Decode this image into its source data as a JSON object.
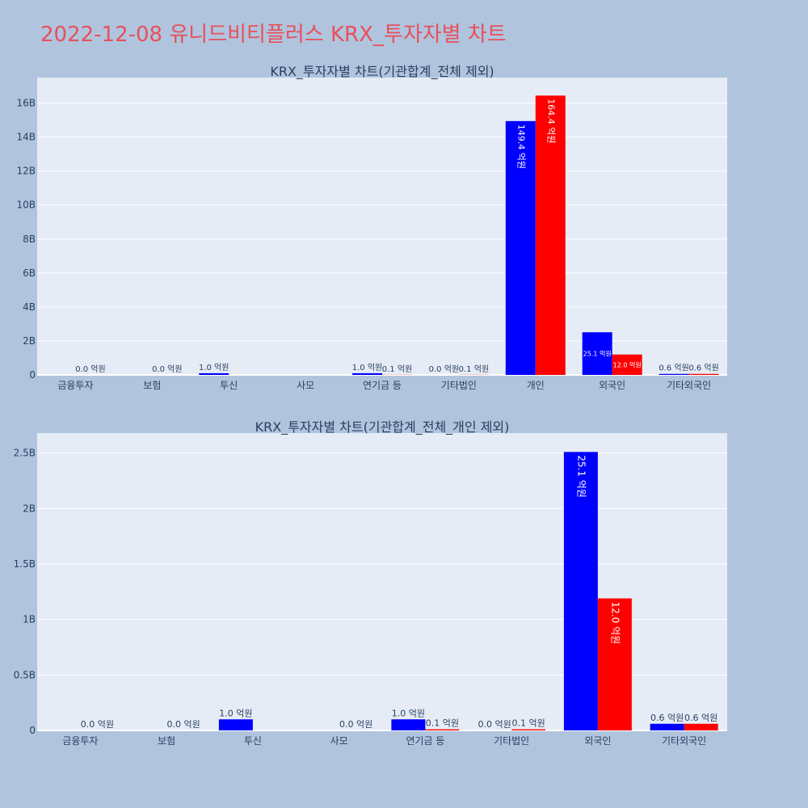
{
  "page": {
    "title": "2022-12-08 유니드비티플러스 KRX_투자자별 차트"
  },
  "chart_data": [
    {
      "type": "bar",
      "title": "KRX_투자자별 차트(기관합계_전체 제외)",
      "categories": [
        "금융투자",
        "보험",
        "투신",
        "사모",
        "연기금 등",
        "기타법인",
        "개인",
        "외국인",
        "기타외국인"
      ],
      "ylim": [
        0,
        17500000000
      ],
      "yticks": [
        0,
        2000000000,
        4000000000,
        6000000000,
        8000000000,
        10000000000,
        12000000000,
        14000000000,
        16000000000
      ],
      "ytick_labels": [
        "0",
        "2B",
        "4B",
        "6B",
        "8B",
        "10B",
        "12B",
        "14B",
        "16B"
      ],
      "grid": true,
      "legend": "none",
      "series": [
        {
          "color": "#0000ff",
          "values": [
            0,
            0,
            100000000,
            0,
            100000000,
            0,
            14940000000,
            2510000000,
            60000000
          ],
          "labels": [
            "",
            "",
            "1.0 억원",
            "",
            "1.0 억원",
            "0.0 억원",
            "149.4 억원",
            "25.1 억원",
            "0.6 억원"
          ]
        },
        {
          "color": "#ff0000",
          "values": [
            0,
            0,
            0,
            0,
            10000000,
            10000000,
            16440000000,
            1200000000,
            60000000
          ],
          "labels": [
            "0.0 억원",
            "0.0 억원",
            "",
            "",
            "0.1 억원",
            "0.1 억원",
            "164.4 억원",
            "12.0 억원",
            "0.6 억원"
          ]
        }
      ]
    },
    {
      "type": "bar",
      "title": "KRX_투자자별 차트(기관합계_전체_개인 제외)",
      "categories": [
        "금융투자",
        "보험",
        "투신",
        "사모",
        "연기금 등",
        "기타법인",
        "외국인",
        "기타외국인"
      ],
      "ylim": [
        0,
        2680000000
      ],
      "yticks": [
        0,
        500000000,
        1000000000,
        1500000000,
        2000000000,
        2500000000
      ],
      "ytick_labels": [
        "0",
        "0.5B",
        "1B",
        "1.5B",
        "2B",
        "2.5B"
      ],
      "grid": true,
      "legend": "none",
      "series": [
        {
          "color": "#0000ff",
          "values": [
            0,
            0,
            100000000,
            0,
            100000000,
            0,
            2510000000,
            60000000
          ],
          "labels": [
            "",
            "",
            "1.0 억원",
            "",
            "1.0 억원",
            "0.0 억원",
            "25.1 억원",
            "0.6 억원"
          ]
        },
        {
          "color": "#ff0000",
          "values": [
            0,
            0,
            0,
            0,
            10000000,
            10000000,
            1190000000,
            60000000
          ],
          "labels": [
            "0.0 억원",
            "0.0 억원",
            "",
            "0.0 억원",
            "0.1 억원",
            "0.1 억원",
            "12.0 억원",
            "0.6 억원"
          ]
        }
      ]
    }
  ]
}
